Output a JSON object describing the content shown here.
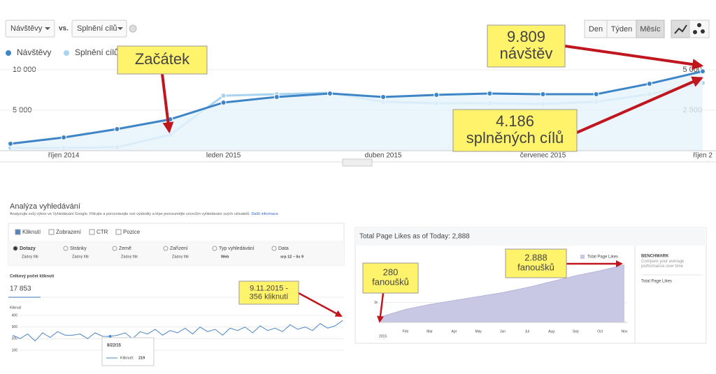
{
  "toolbar": {
    "metric": "Návštěvy",
    "vs": "vs.",
    "compare": "Splnění cílů",
    "periods": [
      "Den",
      "Týden",
      "Měsíc"
    ]
  },
  "search_panel": {
    "title": "Analýza vyhledávání",
    "description": "Analyzujte svůj výkon ve Vyhledávání Google. Filtrujte a porovnávejte své výsledky a lépe porozumějte vzorcům vyhledávání svých uživatelů.",
    "link": "Další informace",
    "metrics": [
      "Kliknutí",
      "Zobrazení",
      "CTR",
      "Pozice"
    ],
    "filters": [
      {
        "name": "Dotazy",
        "value": "Žádný filtr"
      },
      {
        "name": "Stránky",
        "value": "Žádný filtr"
      },
      {
        "name": "Země",
        "value": "Žádný filtr"
      },
      {
        "name": "Zařízení",
        "value": "Žádný filtr"
      },
      {
        "name": "Typ vyhledávání",
        "value": "Web"
      },
      {
        "name": "Data",
        "value": "srp 12 – lis 9"
      }
    ],
    "total_label": "Celkový počet kliknutí",
    "total": "17 853"
  },
  "fb_panel": {
    "benchmark": "BENCHMARK",
    "benchmark_text": "Compare your average performance over time",
    "benchmark_item": "Total Page Likes"
  },
  "chart_data": [
    {
      "type": "line",
      "categories": [
        null,
        "říjen 2014",
        null,
        null,
        "leden 2015",
        null,
        null,
        "duben 2015",
        null,
        null,
        "červenec 2015",
        null,
        null,
        "říjen 2"
      ],
      "series": [
        {
          "name": "Návštěvy",
          "color": "#3d85c6",
          "values": [
            860,
            1640,
            2670,
            3880,
            5950,
            6640,
            7070,
            6640,
            6900,
            7070,
            6980,
            6980,
            8280,
            9809
          ]
        },
        {
          "name": "Splnění cílů",
          "color": "#a9d4f0",
          "axis": "y2",
          "values": [
            170,
            170,
            215,
            990,
            3400,
            3490,
            3580,
            3020,
            2930,
            2930,
            2890,
            3020,
            3490,
            4186
          ]
        }
      ],
      "ylim": [
        0,
        11000
      ],
      "yticks": [
        {
          "value": 5000,
          "label": "5 000"
        },
        {
          "value": 10000,
          "label": "10 000"
        }
      ],
      "y2lim": [
        0,
        5500
      ],
      "y2ticks": [
        {
          "value": 2500,
          "label": "2 500"
        },
        {
          "value": 5000,
          "label": "5 000"
        }
      ],
      "grid": true,
      "annotations": [
        [
          "Začátek"
        ],
        [
          "9.809",
          "návštěv"
        ],
        [
          "4.186",
          "splněných cílů"
        ]
      ]
    },
    {
      "type": "line",
      "y_label": "Kliknutí",
      "color": "#4a86c5",
      "values": [
        230,
        200,
        240,
        180,
        250,
        210,
        260,
        230,
        230,
        240,
        200,
        250,
        220,
        219,
        230,
        250,
        200,
        260,
        240,
        280,
        230,
        270,
        250,
        290,
        240,
        300,
        260,
        280,
        230,
        290,
        270,
        300,
        250,
        310,
        270,
        290,
        260,
        320,
        280,
        300,
        270,
        330,
        290,
        310,
        356
      ],
      "ylim": [
        40,
        442
      ],
      "yticks": [
        100,
        200,
        300,
        400
      ],
      "grid": true,
      "tooltip": {
        "date": "8/22/15",
        "label": "Kliknutí:"
      },
      "annotations": [
        [
          "9.11.2015 -",
          "356 kliknutí"
        ]
      ]
    },
    {
      "type": "area",
      "title": "Total Page Likes as of Today: 2,888",
      "categories": [
        null,
        "Feb",
        "Mar",
        "Apr",
        "May",
        "Jun",
        "Jul",
        "Aug",
        "Sep",
        "Oct",
        "Nov"
      ],
      "year": "2015",
      "series": [
        {
          "name": "Total Page Likes",
          "color": "#c8c8e4",
          "values": [
            280,
            650,
            900,
            1100,
            1300,
            1500,
            1750,
            2050,
            2350,
            2600,
            2888
          ]
        }
      ],
      "ylim": [
        0,
        3700
      ],
      "yticks": [
        {
          "value": 1000,
          "label": "1k"
        }
      ],
      "grid": true,
      "annotations": [
        [
          "280",
          "fanoušků"
        ],
        [
          "2.888",
          "fanoušků"
        ]
      ]
    }
  ]
}
